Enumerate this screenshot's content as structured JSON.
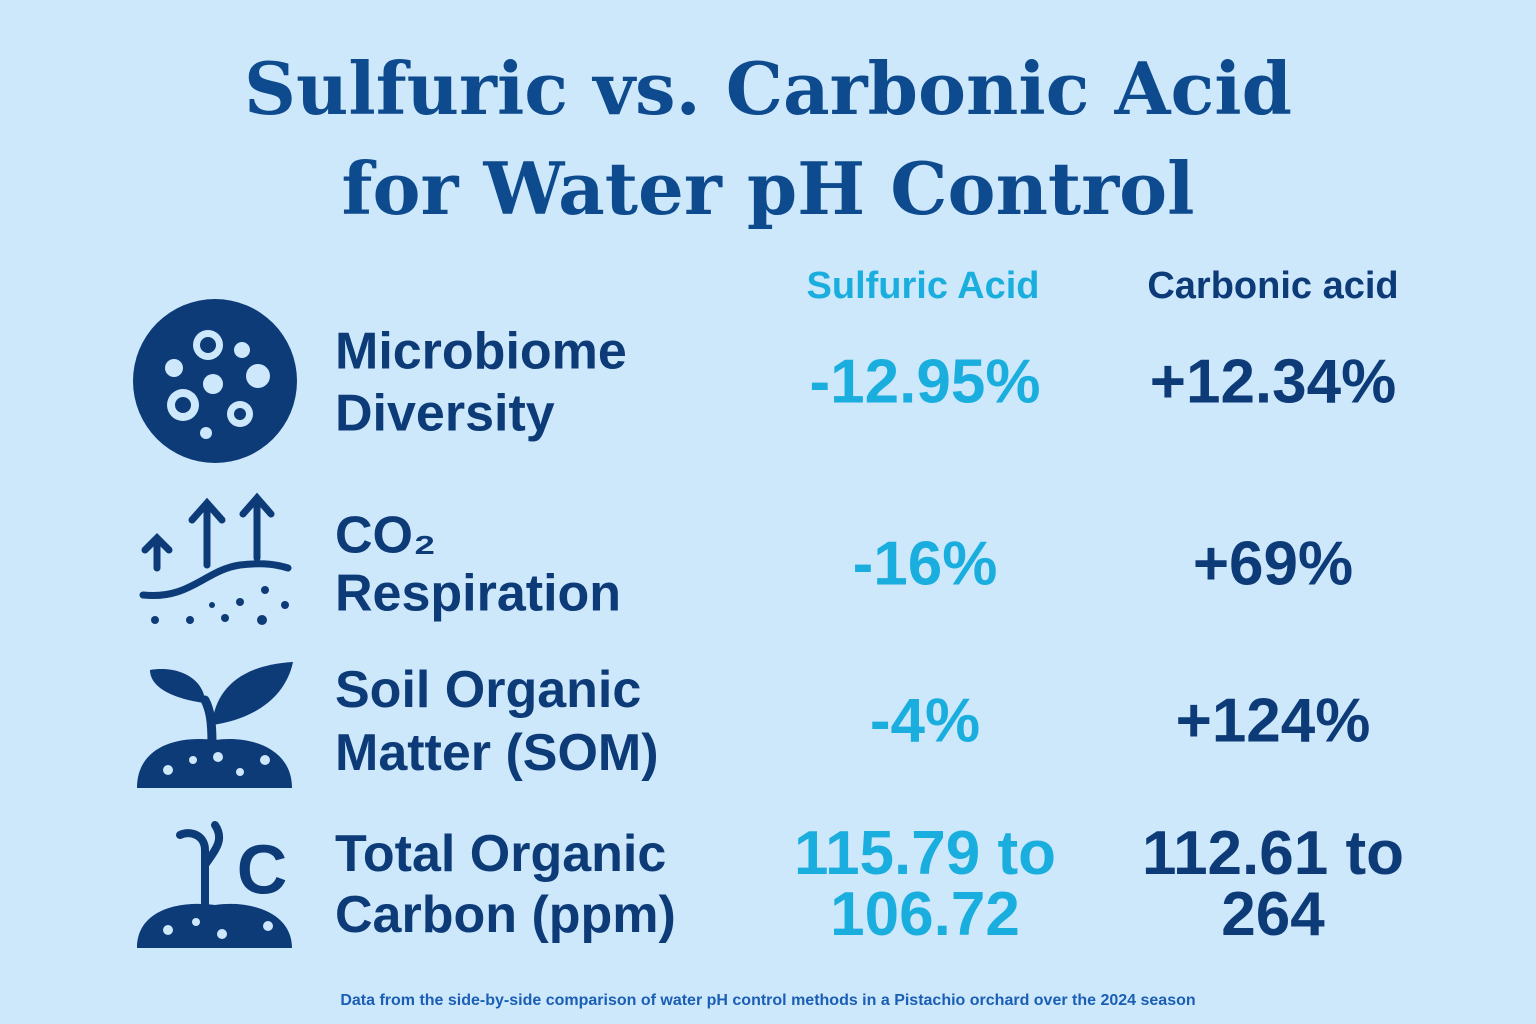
{
  "title": {
    "lines": [
      "Sulfuric vs. Carbonic Acid",
      "for Water pH Control"
    ]
  },
  "table": {
    "headers": [
      "Sulfuric Acid",
      "Carbonic acid"
    ],
    "rows": [
      {
        "label": [
          "Microbiome",
          "Diversity"
        ],
        "sulfuric": [
          "-12.95%"
        ],
        "carbonic": [
          "+12.34%"
        ]
      },
      {
        "label": [
          "CO₂",
          "Respiration"
        ],
        "sulfuric": [
          "-16%"
        ],
        "carbonic": [
          "+69%"
        ]
      },
      {
        "label": [
          "Soil Organic",
          "Matter (SOM)"
        ],
        "sulfuric": [
          "-4%"
        ],
        "carbonic": [
          "+124%"
        ]
      },
      {
        "label": [
          "Total Organic",
          "Carbon (ppm)"
        ],
        "sulfuric": [
          "115.79 to",
          "106.72"
        ],
        "carbonic": [
          "112.61 to",
          "264"
        ]
      }
    ]
  },
  "footer": "Data from the side-by-side comparison of water pH control methods in a Pistachio orchard over the 2024 season"
}
